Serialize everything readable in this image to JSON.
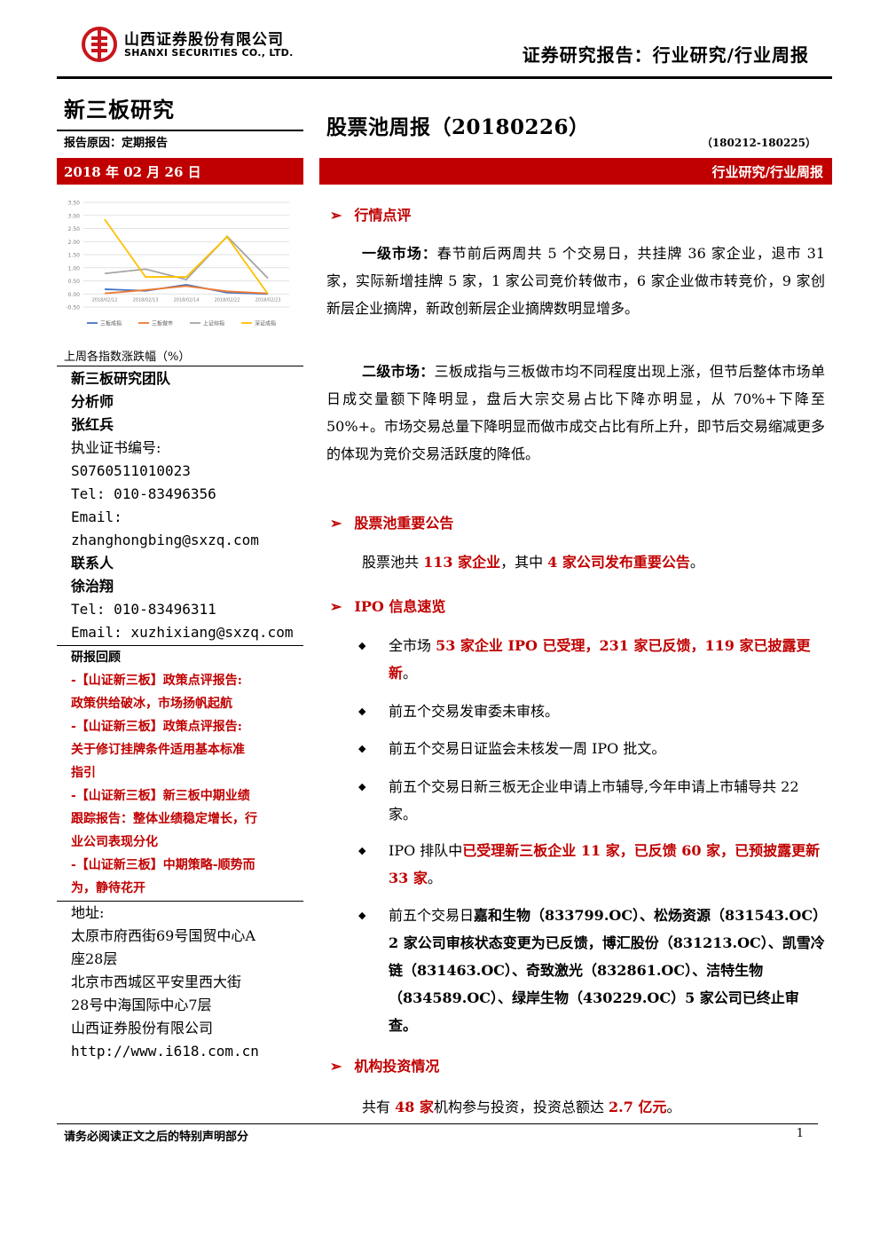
{
  "header": {
    "company_cn": "山西证券股份有限公司",
    "company_en": "SHANXI SECURITIES CO., LTD.",
    "report_type": "证券研究报告：行业研究/行业周报"
  },
  "sidebar": {
    "section": "新三板研究",
    "reason": "报告原因：定期报告",
    "date": "2018 年 02 月 26 日",
    "chart_caption": "上周各指数涨跌幅（%）",
    "team": "新三板研究团队",
    "analyst_label": "分析师",
    "analyst_name": "张红兵",
    "cert_label": "执业证书编号:",
    "cert_no": "S0760511010023",
    "analyst_tel": "Tel: 010-83496356",
    "email_label": "Email:",
    "analyst_email": "zhanghongbing@sxzq.com",
    "contact_label": "联系人",
    "contact_name": "徐治翔",
    "contact_tel": "Tel: 010-83496311",
    "contact_email": "Email: xuzhixiang@sxzq.com",
    "reviews_label": "研报回顾",
    "reviews": [
      "-【山证新三板】政策点评报告:",
      "政策供给破冰，市场扬帆起航",
      "-【山证新三板】政策点评报告:",
      "关于修订挂牌条件适用基本标准",
      "指引",
      "-【山证新三板】新三板中期业绩",
      "跟踪报告：整体业绩稳定增长，行",
      "业公司表现分化",
      "-【山证新三板】中期策略-顺势而",
      "为，静待花开"
    ],
    "address_label": "地址:",
    "address": [
      "太原市府西街69号国贸中心A",
      "座28层",
      "北京市西城区平安里西大街",
      "28号中海国际中心7层",
      "山西证券股份有限公司",
      "http://www.i618.com.cn"
    ]
  },
  "chart_data": {
    "type": "line",
    "title": "",
    "x": [
      "2018/02/12",
      "2018/02/13",
      "2018/02/14",
      "2018/02/22",
      "2018/02/23"
    ],
    "ylim": [
      -0.5,
      3.5
    ],
    "yticks": [
      "3.50",
      "3.00",
      "2.50",
      "2.00",
      "1.50",
      "1.00",
      "0.50",
      "0.00",
      "-0.50"
    ],
    "series": [
      {
        "name": "三板成指",
        "color": "#4472c4",
        "values": [
          0.18,
          0.12,
          0.35,
          0.05,
          0.0
        ]
      },
      {
        "name": "三板做市",
        "color": "#ed7d31",
        "values": [
          0.02,
          0.15,
          0.3,
          0.1,
          0.02
        ]
      },
      {
        "name": "上证综指",
        "color": "#a5a5a5",
        "values": [
          0.78,
          0.95,
          0.55,
          2.2,
          0.6
        ]
      },
      {
        "name": "深证成指",
        "color": "#ffc000",
        "values": [
          2.85,
          0.65,
          0.65,
          2.18,
          0.0
        ]
      }
    ],
    "grid": true,
    "legend": "bottom"
  },
  "main": {
    "title": "股票池周报（20180226）",
    "period": "（180212-180225）",
    "bar_label": "行业研究/行业周报",
    "arrow": "➢",
    "sections": {
      "market": {
        "heading": "行情点评",
        "p1_lead": "一级市场：",
        "p1_body": "春节前后两周共 5 个交易日，共挂牌 36 家企业，退市 31 家，实际新增挂牌 5 家，1 家公司竞价转做市，6 家企业做市转竞价，9 家创新层企业摘牌，新政创新层企业摘牌数明显增多。",
        "p2_lead": "二级市场：",
        "p2_body": "三板成指与三板做市均不同程度出现上涨，但节后整体市场单日成交量额下降明显，盘后大宗交易占比下降亦明显，从 70%+下降至 50%+。市场交易总量下降明显而做市成交占比有所上升，即节后交易缩减更多的体现为竞价交易活跃度的降低。"
      },
      "pool": {
        "heading": "股票池重要公告",
        "pre": "股票池共 ",
        "hl1": "113 家企业",
        "mid": "，其中 ",
        "hl2": "4 家公司发布重要公告",
        "post": "。"
      },
      "ipo": {
        "heading": "IPO 信息速览",
        "bullet": "◆",
        "b1_pre": "全市场 ",
        "b1_hl": "53 家企业 IPO 已受理，231 家已反馈，119 家已披露更新",
        "b1_post": "。",
        "b2": "前五个交易发审委未审核。",
        "b3": "前五个交易日证监会未核发一周 IPO 批文。",
        "b4": "前五个交易日新三板无企业申请上市辅导,今年申请上市辅导共 22 家。",
        "b5_pre": "IPO 排队中",
        "b5_hl": "已受理新三板企业 11 家，已反馈 60 家，已预披露更新 33 家",
        "b5_post": "。",
        "b6_pre": "前五个交易日",
        "b6_bold": "嘉和生物（833799.OC）、松炀资源（831543.OC）2 家公司审核状态变更为已反馈，博汇股份（831213.OC）、凯雪冷链（831463.OC）、奇致激光（832861.OC）、洁特生物（834589.OC）、绿岸生物（430229.OC）5 家公司已终止审查。"
      },
      "invest": {
        "heading": "机构投资情况",
        "pre": "共有 ",
        "hl1": "48 家",
        "mid": "机构参与投资，投资总额达 ",
        "hl2": "2.7 亿元",
        "post": "。"
      }
    }
  },
  "footer": {
    "note": "请务必阅读正文之后的特别声明部分",
    "page": "1"
  },
  "colors": {
    "accent": "#c00000",
    "logo": "#c8161d"
  }
}
